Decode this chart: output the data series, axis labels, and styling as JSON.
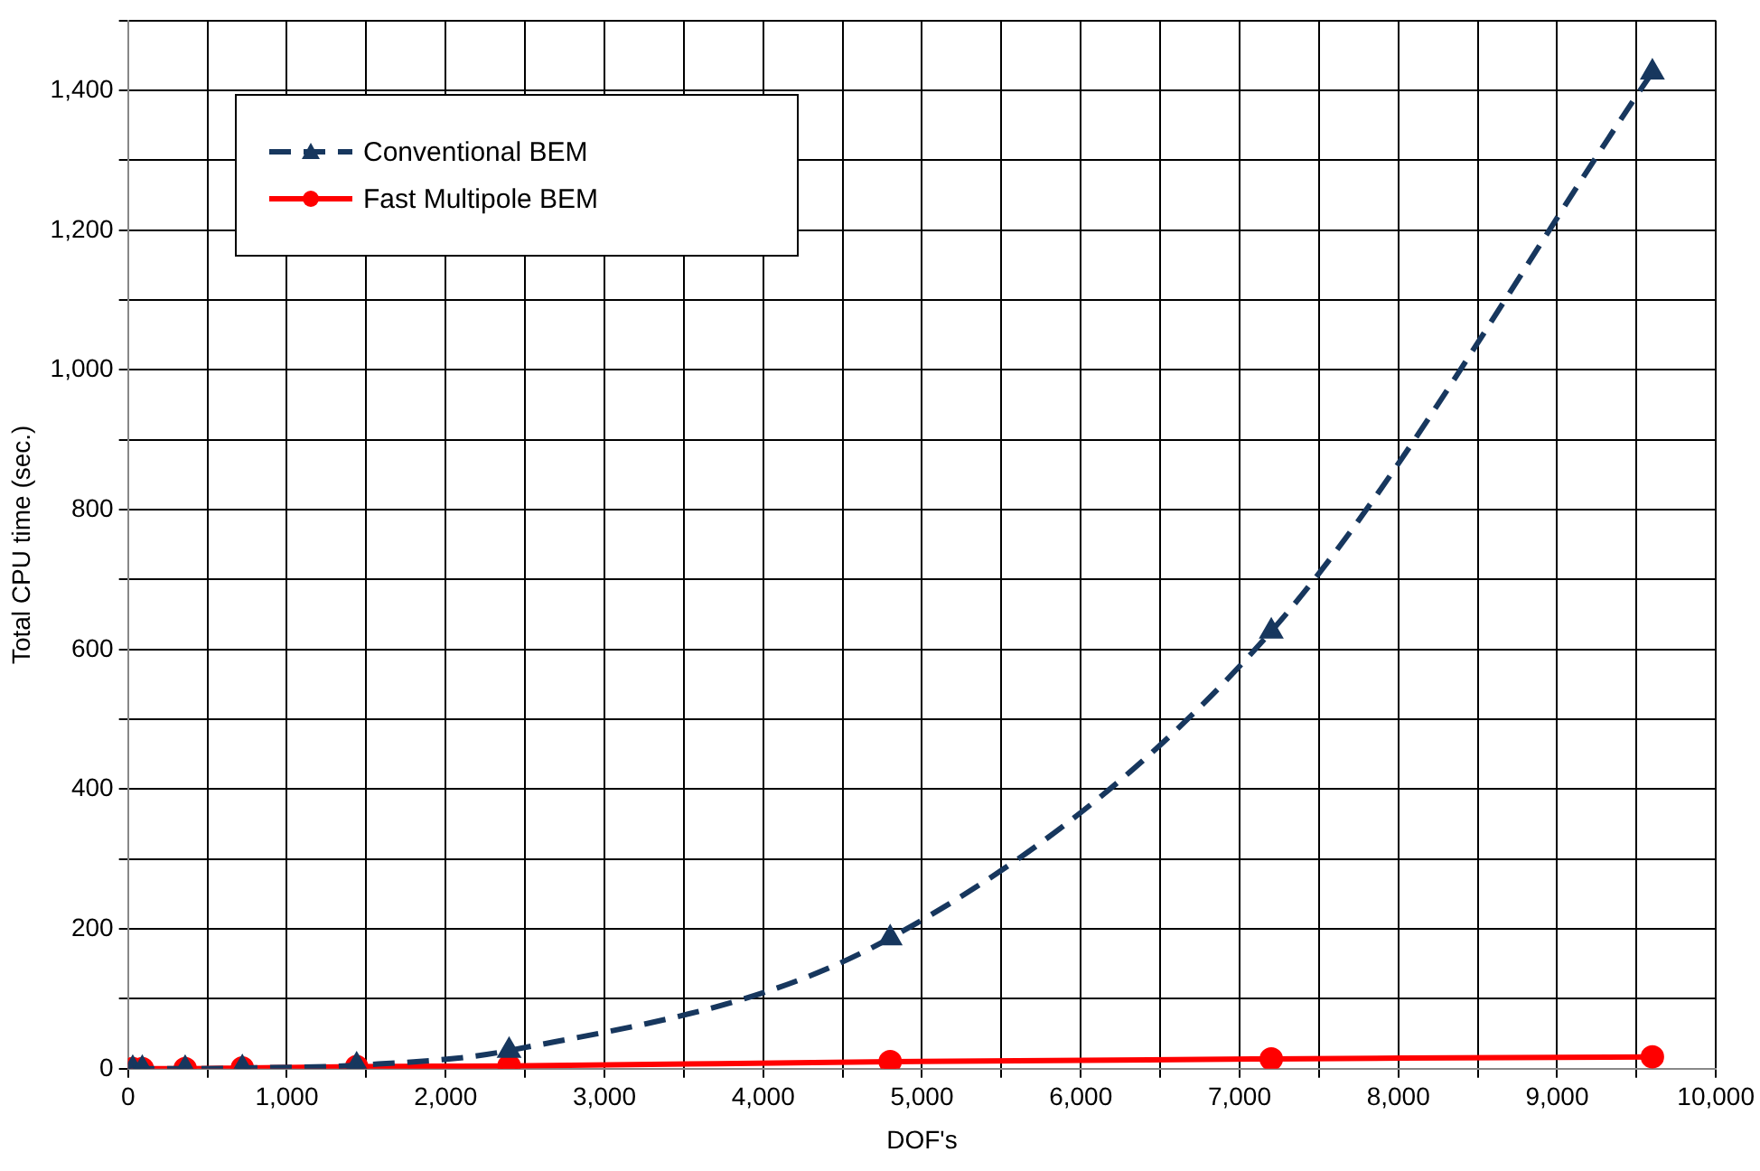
{
  "chart_data": {
    "type": "line",
    "xlabel": "DOF's",
    "ylabel": "Total CPU time (sec.)",
    "series": [
      {
        "name": "Conventional BEM",
        "color": "#17375e",
        "marker": "triangle",
        "line_style": "dashed",
        "x": [
          30,
          90,
          360,
          720,
          1440,
          2400,
          4800,
          7200,
          9600
        ],
        "values": [
          0,
          0,
          0,
          1,
          5,
          26,
          187,
          626,
          1426
        ]
      },
      {
        "name": "Fast Multipole BEM",
        "color": "#ff0000",
        "marker": "circle",
        "line_style": "solid",
        "x": [
          30,
          90,
          360,
          720,
          1440,
          2400,
          4800,
          7200,
          9600
        ],
        "values": [
          0,
          0,
          0,
          1,
          3,
          4,
          10,
          14,
          17
        ]
      }
    ],
    "xlim": [
      0,
      10000
    ],
    "xticks": [
      0,
      {
        "value": 500,
        "label": null
      },
      {
        "value": 1000,
        "label": "1,000"
      },
      {
        "value": 1500,
        "label": null
      },
      {
        "value": 2000,
        "label": "2,000"
      },
      {
        "value": 2500,
        "label": null
      },
      {
        "value": 3000,
        "label": "3,000"
      },
      {
        "value": 3500,
        "label": null
      },
      {
        "value": 4000,
        "label": "4,000"
      },
      {
        "value": 4500,
        "label": null
      },
      {
        "value": 5000,
        "label": "5,000"
      },
      {
        "value": 5500,
        "label": null
      },
      {
        "value": 6000,
        "label": "6,000"
      },
      {
        "value": 6500,
        "label": null
      },
      {
        "value": 7000,
        "label": "7,000"
      },
      {
        "value": 7500,
        "label": null
      },
      {
        "value": 8000,
        "label": "8,000"
      },
      {
        "value": 8500,
        "label": null
      },
      {
        "value": 9000,
        "label": "9,000"
      },
      {
        "value": 9500,
        "label": null
      },
      {
        "value": 10000,
        "label": "10,000"
      }
    ],
    "ylim": [
      0,
      1500
    ],
    "yticks": [
      0,
      {
        "value": 100,
        "label": null
      },
      200,
      {
        "value": 300,
        "label": null
      },
      400,
      {
        "value": 500,
        "label": null
      },
      600,
      {
        "value": 700,
        "label": null
      },
      800,
      {
        "value": 900,
        "label": null
      },
      {
        "value": 1000,
        "label": "1,000"
      },
      {
        "value": 1100,
        "label": null
      },
      {
        "value": 1200,
        "label": "1,200"
      },
      {
        "value": 1300,
        "label": null
      },
      {
        "value": 1400,
        "label": "1,400"
      },
      {
        "value": 1500,
        "label": null
      }
    ],
    "grid": true,
    "legend": "top left"
  }
}
